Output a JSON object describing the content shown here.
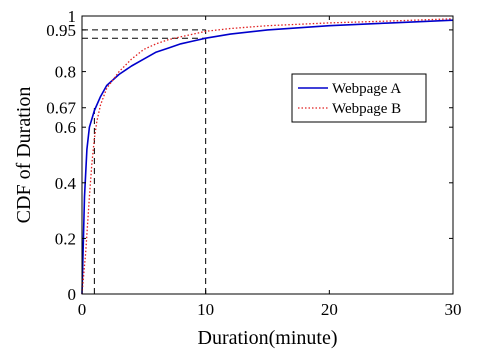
{
  "chart_data": {
    "type": "line",
    "xlabel": "Duration(minute)",
    "ylabel": "CDF of Duration",
    "xlim": [
      0,
      30
    ],
    "ylim": [
      0,
      1
    ],
    "x_ticks": [
      0,
      10,
      20,
      30
    ],
    "x_tick_labels": [
      "0",
      "10",
      "20",
      "30"
    ],
    "y_ticks": [
      0,
      0.2,
      0.4,
      0.6,
      0.67,
      0.8,
      0.95,
      1
    ],
    "y_tick_labels": [
      "0",
      "0.2",
      "0.4",
      "0.6",
      "0.67",
      "0.8",
      "0.95",
      "1"
    ],
    "grid": false,
    "legend_position": "top-right",
    "series": [
      {
        "name": "Webpage A",
        "color": "#0000cc",
        "line_style": "solid",
        "x": [
          0,
          0.2,
          0.4,
          0.6,
          0.8,
          1,
          1.5,
          2,
          3,
          4,
          5,
          6,
          7,
          8,
          9,
          10,
          12,
          15,
          20,
          25,
          30
        ],
        "y": [
          0,
          0.35,
          0.52,
          0.6,
          0.63,
          0.66,
          0.71,
          0.75,
          0.79,
          0.82,
          0.845,
          0.87,
          0.885,
          0.9,
          0.91,
          0.92,
          0.935,
          0.95,
          0.965,
          0.975,
          0.985
        ]
      },
      {
        "name": "Webpage B",
        "color": "#e02020",
        "line_style": "dotted",
        "x": [
          0,
          0.3,
          0.6,
          0.8,
          1,
          1.2,
          1.5,
          2,
          3,
          4,
          5,
          6,
          7,
          8,
          10,
          12,
          15,
          20,
          25,
          30
        ],
        "y": [
          0,
          0.15,
          0.35,
          0.47,
          0.56,
          0.62,
          0.68,
          0.74,
          0.8,
          0.845,
          0.88,
          0.9,
          0.915,
          0.925,
          0.945,
          0.955,
          0.965,
          0.975,
          0.982,
          0.99
        ]
      }
    ],
    "reference_lines": [
      {
        "orientation": "vertical",
        "x": 1,
        "y_max": 0.67
      },
      {
        "orientation": "vertical",
        "x": 10,
        "y_max": 0.95
      },
      {
        "orientation": "horizontal",
        "y": 0.95,
        "x_max": 10
      },
      {
        "orientation": "horizontal",
        "y": 0.92,
        "x_max": 10
      }
    ]
  }
}
